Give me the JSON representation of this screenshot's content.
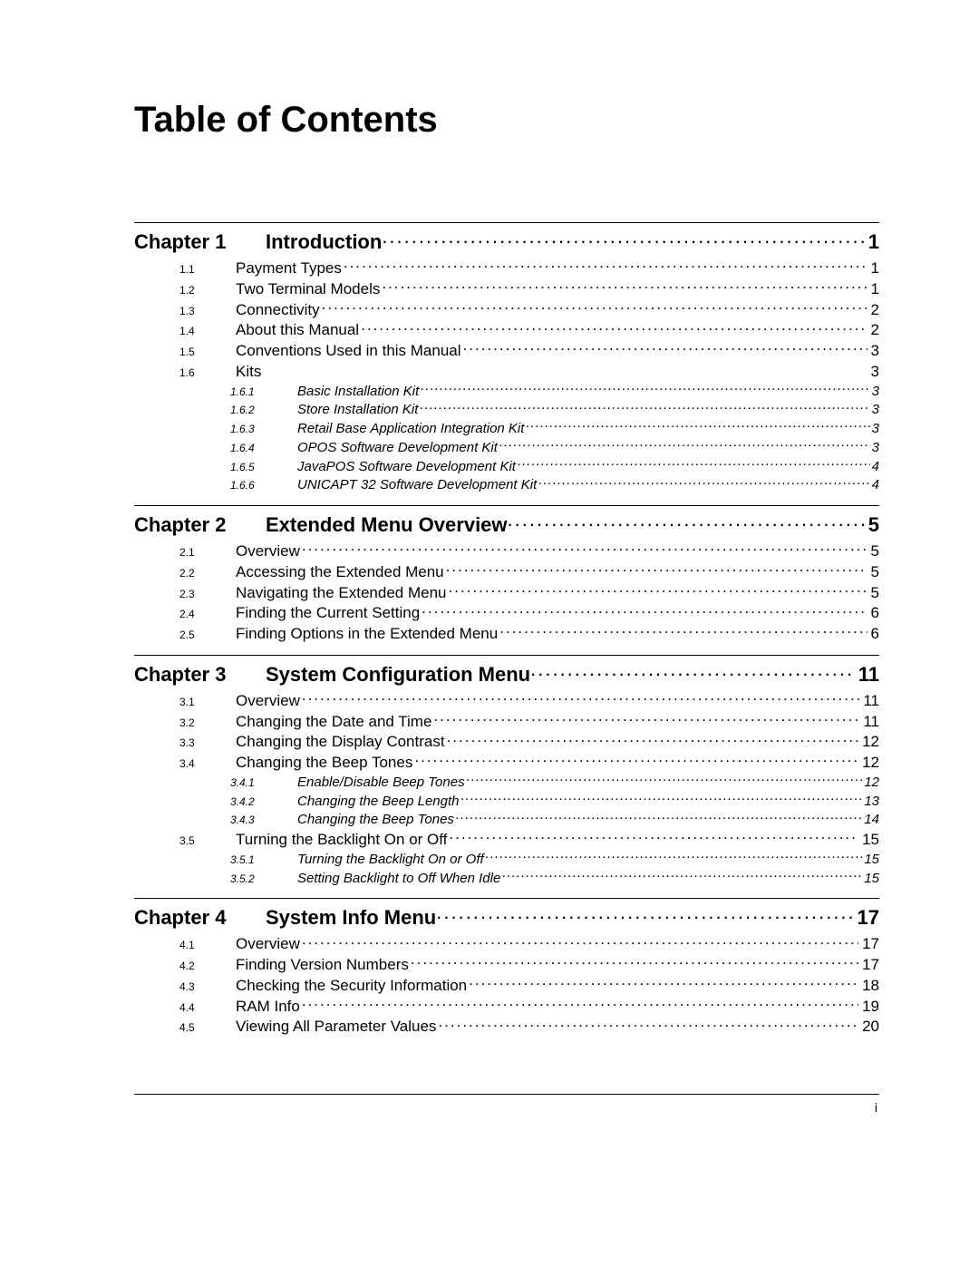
{
  "title": "Table of Contents",
  "footer_page": "i",
  "chapters": [
    {
      "label": "Chapter 1",
      "title": "Introduction",
      "page": "1",
      "entries": [
        {
          "num": "1.1",
          "title": "Payment Types",
          "page": "1"
        },
        {
          "num": "1.2",
          "title": "Two Terminal Models",
          "page": "1"
        },
        {
          "num": "1.3",
          "title": "Connectivity",
          "page": "2"
        },
        {
          "num": "1.4",
          "title": "About this Manual",
          "page": "2"
        },
        {
          "num": "1.5",
          "title": "Conventions Used in this Manual",
          "page": "3"
        },
        {
          "num": "1.6",
          "title": "Kits",
          "page": "3",
          "no_leader": true,
          "sub": [
            {
              "num": "1.6.1",
              "title": "Basic Installation Kit",
              "page": "3"
            },
            {
              "num": "1.6.2",
              "title": "Store Installation Kit",
              "page": "3"
            },
            {
              "num": "1.6.3",
              "title": "Retail Base Application Integration Kit",
              "page": "3"
            },
            {
              "num": "1.6.4",
              "title": "OPOS Software Development Kit",
              "page": "3"
            },
            {
              "num": "1.6.5",
              "title": "JavaPOS Software Development Kit",
              "page": "4"
            },
            {
              "num": "1.6.6",
              "title": "UNICAPT 32 Software Development Kit",
              "page": "4"
            }
          ]
        }
      ]
    },
    {
      "label": "Chapter 2",
      "title": "Extended Menu Overview",
      "page": "5",
      "entries": [
        {
          "num": "2.1",
          "title": "Overview",
          "page": "5"
        },
        {
          "num": "2.2",
          "title": "Accessing the Extended Menu",
          "page": "5"
        },
        {
          "num": "2.3",
          "title": "Navigating the Extended Menu",
          "page": "5"
        },
        {
          "num": "2.4",
          "title": "Finding the Current Setting",
          "page": "6"
        },
        {
          "num": "2.5",
          "title": "Finding Options in the Extended Menu",
          "page": "6"
        }
      ]
    },
    {
      "label": "Chapter 3",
      "title": "System Configuration Menu",
      "page": "11",
      "entries": [
        {
          "num": "3.1",
          "title": "Overview",
          "page": "11"
        },
        {
          "num": "3.2",
          "title": "Changing the Date and Time",
          "page": "11"
        },
        {
          "num": "3.3",
          "title": "Changing the Display Contrast",
          "page": "12"
        },
        {
          "num": "3.4",
          "title": "Changing the Beep Tones",
          "page": "12",
          "sub": [
            {
              "num": "3.4.1",
              "title": "Enable/Disable Beep Tones",
              "page": "12"
            },
            {
              "num": "3.4.2",
              "title": "Changing the Beep Length",
              "page": "13"
            },
            {
              "num": "3.4.3",
              "title": "Changing the Beep Tones",
              "page": "14"
            }
          ]
        },
        {
          "num": "3.5",
          "title": "Turning the Backlight On or Off",
          "page": "15",
          "sub": [
            {
              "num": "3.5.1",
              "title": "Turning the Backlight On or Off",
              "page": "15"
            },
            {
              "num": "3.5.2",
              "title": "Setting Backlight to Off When Idle",
              "page": "15"
            }
          ]
        }
      ]
    },
    {
      "label": "Chapter 4",
      "title": "System Info Menu",
      "page": "17",
      "entries": [
        {
          "num": "4.1",
          "title": "Overview",
          "page": "17"
        },
        {
          "num": "4.2",
          "title": "Finding Version Numbers",
          "page": "17"
        },
        {
          "num": "4.3",
          "title": "Checking the Security Information",
          "page": "18"
        },
        {
          "num": "4.4",
          "title": "RAM Info",
          "page": "19"
        },
        {
          "num": "4.5",
          "title": "Viewing All Parameter Values",
          "page": "20"
        }
      ]
    }
  ]
}
